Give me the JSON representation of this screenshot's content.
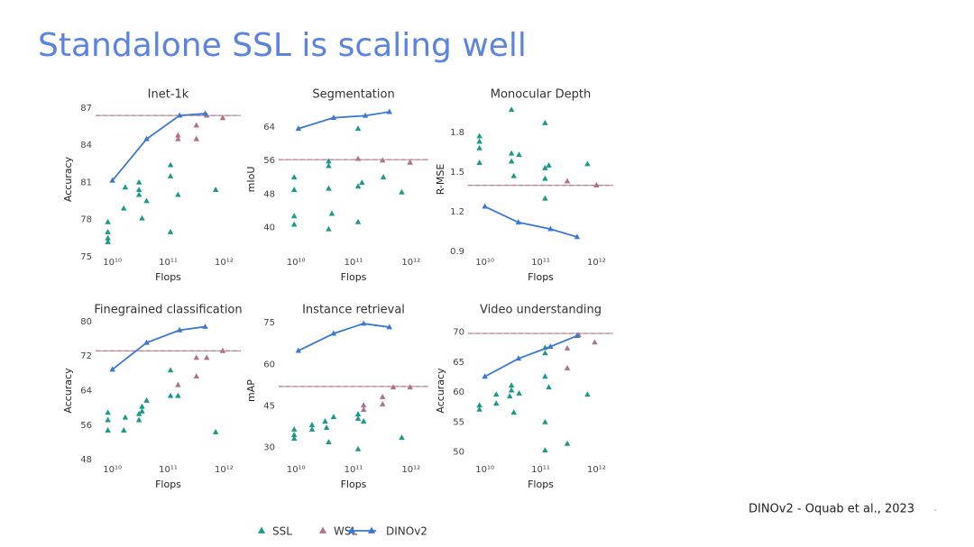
{
  "title": "Standalone SSL is scaling well",
  "citation": "DINOv2 - Oquab et al., 2023",
  "chart_data": [
    {
      "type": "scatter",
      "title": "Inet-1k",
      "xlabel": "Flops",
      "ylabel": "Accuracy",
      "xscale": "log",
      "xlim": [
        5000000000.0,
        2000000000000.0
      ],
      "xticks": [
        {
          "value": 10000000000.0,
          "label": "10¹⁰"
        },
        {
          "value": 100000000000.0,
          "label": "10¹¹"
        },
        {
          "value": 1000000000000.0,
          "label": "10¹²"
        }
      ],
      "ylim": [
        75,
        87.5
      ],
      "yticks": [
        75,
        78,
        81,
        84,
        87
      ],
      "reference_line": {
        "value": 86.4,
        "color": "#c9748f"
      },
      "series": [
        {
          "name": "SSL",
          "color": "#1a9a8a",
          "x": [
            8300000000.0,
            8300000000.0,
            8300000000.0,
            8300000000.0,
            17000000000.0,
            16000000000.0,
            30000000000.0,
            30000000000.0,
            30000000000.0,
            34000000000.0,
            41000000000.0,
            110000000000.0,
            110000000000.0,
            110000000000.0,
            150000000000.0,
            710000000000.0
          ],
          "values": [
            77.8,
            77,
            76.5,
            76.2,
            80.6,
            78.9,
            81,
            80.4,
            80,
            78.1,
            79.5,
            82.4,
            81.5,
            77,
            80,
            80.4
          ]
        },
        {
          "name": "WSL",
          "color": "#b07090",
          "x": [
            150000000000.0,
            150000000000.0,
            320000000000.0,
            320000000000.0,
            490000000000.0,
            950000000000.0
          ],
          "values": [
            84.8,
            84.5,
            85.6,
            84.5,
            86.4,
            86.2
          ]
        },
        {
          "name": "DINOv2",
          "color": "#3a78d4",
          "style": "line",
          "x": [
            10000000000.0,
            41000000000.0,
            160000000000.0,
            460000000000.0
          ],
          "values": [
            81.15,
            84.5,
            86.4,
            86.55
          ]
        }
      ]
    },
    {
      "type": "scatter",
      "title": "Segmentation",
      "xlabel": "Flops",
      "ylabel": "mIoU",
      "xscale": "log",
      "xlim": [
        5000000000.0,
        2000000000000.0
      ],
      "xticks": [
        {
          "value": 10000000000.0,
          "label": "10¹⁰"
        },
        {
          "value": 100000000000.0,
          "label": "10¹¹"
        },
        {
          "value": 1000000000000.0,
          "label": "10¹²"
        }
      ],
      "ylim": [
        33,
        70
      ],
      "yticks": [
        40,
        48,
        56,
        64
      ],
      "reference_line": {
        "value": 56.2,
        "color": "#c9748f"
      },
      "series": [
        {
          "color": "#1a9a8a",
          "x": [
            9300000000.0,
            9300000000.0,
            9300000000.0,
            9300000000.0,
            37000000000.0,
            37000000000.0,
            37000000000.0,
            42000000000.0,
            37000000000.0,
            120000000000.0,
            120000000000.0,
            140000000000.0,
            120000000000.0,
            330000000000.0,
            690000000000.0
          ],
          "values": [
            52,
            49,
            42.7,
            40.7,
            55.8,
            54.7,
            49.3,
            43.3,
            39.6,
            63.6,
            49.8,
            50.7,
            41.3,
            52,
            48.4
          ]
        },
        {
          "color": "#b07090",
          "x": [
            120000000000.0,
            320000000000.0,
            960000000000.0
          ],
          "values": [
            56.4,
            56,
            55.5
          ]
        },
        {
          "color": "#3a78d4",
          "style": "line",
          "x": [
            11000000000.0,
            45000000000.0,
            160000000000.0,
            420000000000.0
          ],
          "values": [
            63.6,
            66.2,
            66.7,
            67.6
          ]
        }
      ]
    },
    {
      "type": "scatter",
      "title": "Monocular Depth",
      "xlabel": "Flops",
      "ylabel": "R-MSE",
      "xscale": "log",
      "xlim": [
        5000000000.0,
        2000000000000.0
      ],
      "xticks": [
        {
          "value": 10000000000.0,
          "label": "10¹⁰"
        },
        {
          "value": 100000000000.0,
          "label": "10¹¹"
        },
        {
          "value": 1000000000000.0,
          "label": "10¹²"
        }
      ],
      "ylim": [
        0.86,
        2.03
      ],
      "yticks": [
        0.9,
        1.2,
        1.5,
        1.8
      ],
      "reference_line": {
        "value": 1.4,
        "color": "#c9748f"
      },
      "series": [
        {
          "color": "#1a9a8a",
          "x": [
            8000000000.0,
            8000000000.0,
            8000000000.0,
            8000000000.0,
            30000000000.0,
            30000000000.0,
            30000000000.0,
            33000000000.0,
            41000000000.0,
            120000000000.0,
            120000000000.0,
            140000000000.0,
            120000000000.0,
            120000000000.0,
            690000000000.0
          ],
          "values": [
            1.77,
            1.73,
            1.68,
            1.57,
            1.97,
            1.64,
            1.58,
            1.47,
            1.63,
            1.87,
            1.53,
            1.55,
            1.45,
            1.3,
            1.56
          ]
        },
        {
          "color": "#b07090",
          "x": [
            300000000000.0,
            1000000000000.0
          ],
          "values": [
            1.43,
            1.4
          ]
        },
        {
          "color": "#3a78d4",
          "style": "line",
          "x": [
            10000000000.0,
            40000000000.0,
            150000000000.0,
            450000000000.0
          ],
          "values": [
            1.24,
            1.12,
            1.07,
            1.01
          ]
        }
      ]
    },
    {
      "type": "scatter",
      "title": "Finegrained classification",
      "xlabel": "Flops",
      "ylabel": "Accuracy",
      "xscale": "log",
      "xlim": [
        5000000000.0,
        2000000000000.0
      ],
      "xticks": [
        {
          "value": 10000000000.0,
          "label": "10¹⁰"
        },
        {
          "value": 100000000000.0,
          "label": "10¹¹"
        },
        {
          "value": 1000000000000.0,
          "label": "10¹²"
        }
      ],
      "ylim": [
        47,
        81
      ],
      "yticks": [
        48,
        56,
        64,
        72,
        80
      ],
      "reference_line": {
        "value": 73.2,
        "color": "#c9748f"
      },
      "series": [
        {
          "color": "#1a9a8a",
          "x": [
            8300000000.0,
            8300000000.0,
            8300000000.0,
            16000000000.0,
            17000000000.0,
            30000000000.0,
            30000000000.0,
            34000000000.0,
            34000000000.0,
            41000000000.0,
            110000000000.0,
            110000000000.0,
            150000000000.0,
            710000000000.0
          ],
          "values": [
            58.9,
            57.2,
            54.8,
            54.8,
            57.8,
            57.2,
            58.6,
            60.3,
            59.2,
            61.7,
            68.7,
            62.8,
            62.8,
            54.4
          ]
        },
        {
          "color": "#b07090",
          "x": [
            150000000000.0,
            320000000000.0,
            320000000000.0,
            490000000000.0,
            950000000000.0
          ],
          "values": [
            65.3,
            71.6,
            67.3,
            71.6,
            73.2
          ]
        },
        {
          "color": "#3a78d4",
          "style": "line",
          "x": [
            10000000000.0,
            41000000000.0,
            160000000000.0,
            460000000000.0
          ],
          "values": [
            68.9,
            75.1,
            78,
            78.8
          ]
        }
      ]
    },
    {
      "type": "scatter",
      "title": "Instance retrieval",
      "xlabel": "Flops",
      "ylabel": "mAP",
      "xscale": "log",
      "xlim": [
        5000000000.0,
        2000000000000.0
      ],
      "xticks": [
        {
          "value": 10000000000.0,
          "label": "10¹⁰"
        },
        {
          "value": 100000000000.0,
          "label": "10¹¹"
        },
        {
          "value": 1000000000000.0,
          "label": "10¹²"
        }
      ],
      "ylim": [
        24,
        77
      ],
      "yticks": [
        30,
        45,
        60,
        75
      ],
      "reference_line": {
        "value": 52,
        "color": "#c9748f"
      },
      "series": [
        {
          "color": "#1a9a8a",
          "x": [
            9300000000.0,
            9300000000.0,
            9300000000.0,
            19000000000.0,
            19000000000.0,
            32000000000.0,
            34000000000.0,
            37000000000.0,
            45000000000.0,
            120000000000.0,
            120000000000.0,
            150000000000.0,
            120000000000.0,
            690000000000.0
          ],
          "values": [
            36.5,
            34.5,
            33.2,
            38.1,
            36.5,
            39.4,
            37.1,
            31.9,
            41,
            42,
            40.4,
            39.4,
            29.4,
            33.5
          ]
        },
        {
          "color": "#b07090",
          "x": [
            150000000000.0,
            150000000000.0,
            320000000000.0,
            320000000000.0,
            490000000000.0,
            960000000000.0
          ],
          "values": [
            45.2,
            43.6,
            48.2,
            45.6,
            51.7,
            51.7
          ]
        },
        {
          "color": "#3a78d4",
          "style": "line",
          "x": [
            11000000000.0,
            45000000000.0,
            150000000000.0,
            420000000000.0
          ],
          "values": [
            64.9,
            71.1,
            74.7,
            73.4
          ]
        }
      ]
    },
    {
      "type": "scatter",
      "title": "Video understanding",
      "xlabel": "Flops",
      "ylabel": "Accuracy",
      "xscale": "log",
      "xlim": [
        5000000000.0,
        2000000000000.0
      ],
      "xticks": [
        {
          "value": 10000000000.0,
          "label": "10¹⁰"
        },
        {
          "value": 100000000000.0,
          "label": "10¹¹"
        },
        {
          "value": 1000000000000.0,
          "label": "10¹²"
        }
      ],
      "ylim": [
        48,
        72.5
      ],
      "yticks": [
        50,
        55,
        60,
        65,
        70
      ],
      "reference_line": {
        "value": 69.8,
        "color": "#c9748f"
      },
      "series": [
        {
          "color": "#1a9a8a",
          "x": [
            8000000000.0,
            8000000000.0,
            16000000000.0,
            16000000000.0,
            28000000000.0,
            30000000000.0,
            30000000000.0,
            33000000000.0,
            41000000000.0,
            120000000000.0,
            120000000000.0,
            120000000000.0,
            120000000000.0,
            140000000000.0,
            120000000000.0,
            300000000000.0,
            690000000000.0
          ],
          "values": [
            57.8,
            57.1,
            59.6,
            58.1,
            59.3,
            60.3,
            61.1,
            56.6,
            59.8,
            67.4,
            66.5,
            62.6,
            55,
            60.8,
            50.3,
            51.4,
            59.6
          ]
        },
        {
          "color": "#b07090",
          "x": [
            300000000000.0,
            300000000000.0,
            480000000000.0,
            930000000000.0
          ],
          "values": [
            64,
            67.3,
            69.5,
            68.3
          ]
        },
        {
          "color": "#3a78d4",
          "style": "line",
          "x": [
            10000000000.0,
            40000000000.0,
            150000000000.0,
            450000000000.0
          ],
          "values": [
            62.6,
            65.6,
            67.6,
            69.4
          ]
        }
      ]
    }
  ]
}
